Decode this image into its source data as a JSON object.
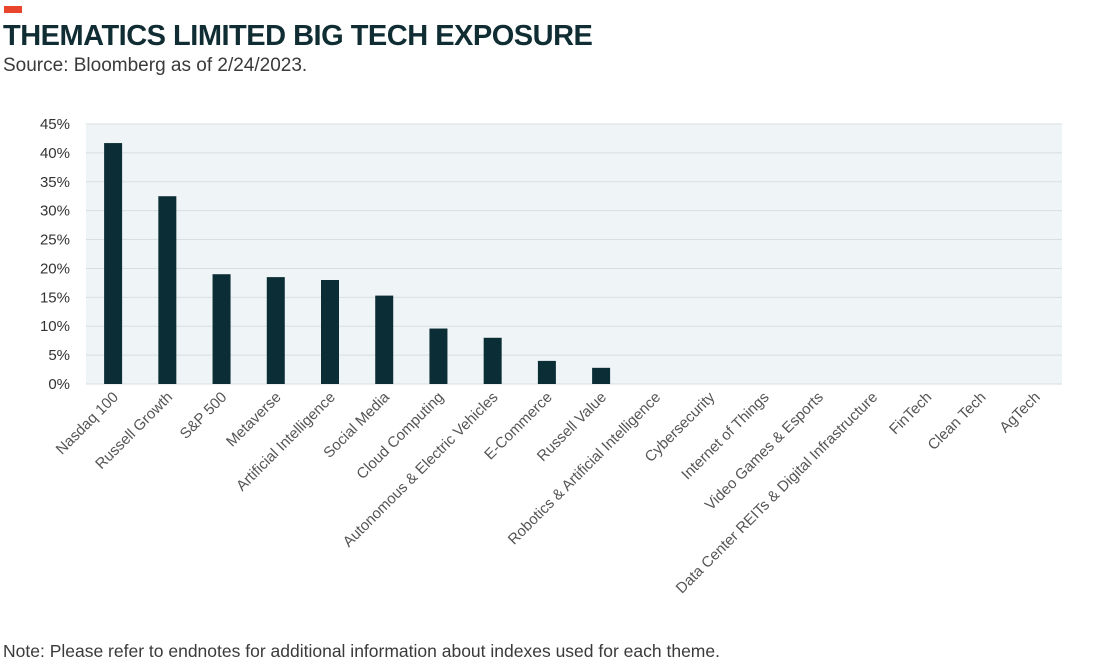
{
  "header": {
    "title": "THEMATICS LIMITED BIG TECH EXPOSURE",
    "subtitle": "Source: Bloomberg as of 2/24/2023."
  },
  "footer": {
    "note": "Note: Please refer to endnotes for additional information about indexes used for each theme."
  },
  "colors": {
    "accent": "#e8452c",
    "bar": "#0b2d35",
    "plot_background": "#eff4f6",
    "gridline": "#d8dfe2",
    "title": "#0f2d33"
  },
  "chart_data": {
    "type": "bar",
    "title": "",
    "xlabel": "",
    "ylabel": "",
    "ylim": [
      0,
      45
    ],
    "y_ticks": [
      0,
      5,
      10,
      15,
      20,
      25,
      30,
      35,
      40,
      45
    ],
    "y_tick_format": "percent",
    "grid": true,
    "legend": "none",
    "categories": [
      "Nasdaq 100",
      "Russell Growth",
      "S&P 500",
      "Metaverse",
      "Artificial Intelligence",
      "Social Media",
      "Cloud Computing",
      "Autonomous & Electric Vehicles",
      "E-Commerce",
      "Russell Value",
      "Robotics & Artificial Intelligence",
      "Cybersecurity",
      "Internet of Things",
      "Video Games & Esports",
      "Data Center REITs & Digital Infrastructure",
      "FinTech",
      "Clean Tech",
      "AgTech"
    ],
    "values": [
      41.7,
      32.5,
      19.0,
      18.5,
      18.0,
      15.3,
      9.6,
      8.0,
      4.0,
      2.8,
      0,
      0,
      0,
      0,
      0,
      0,
      0,
      0
    ]
  }
}
